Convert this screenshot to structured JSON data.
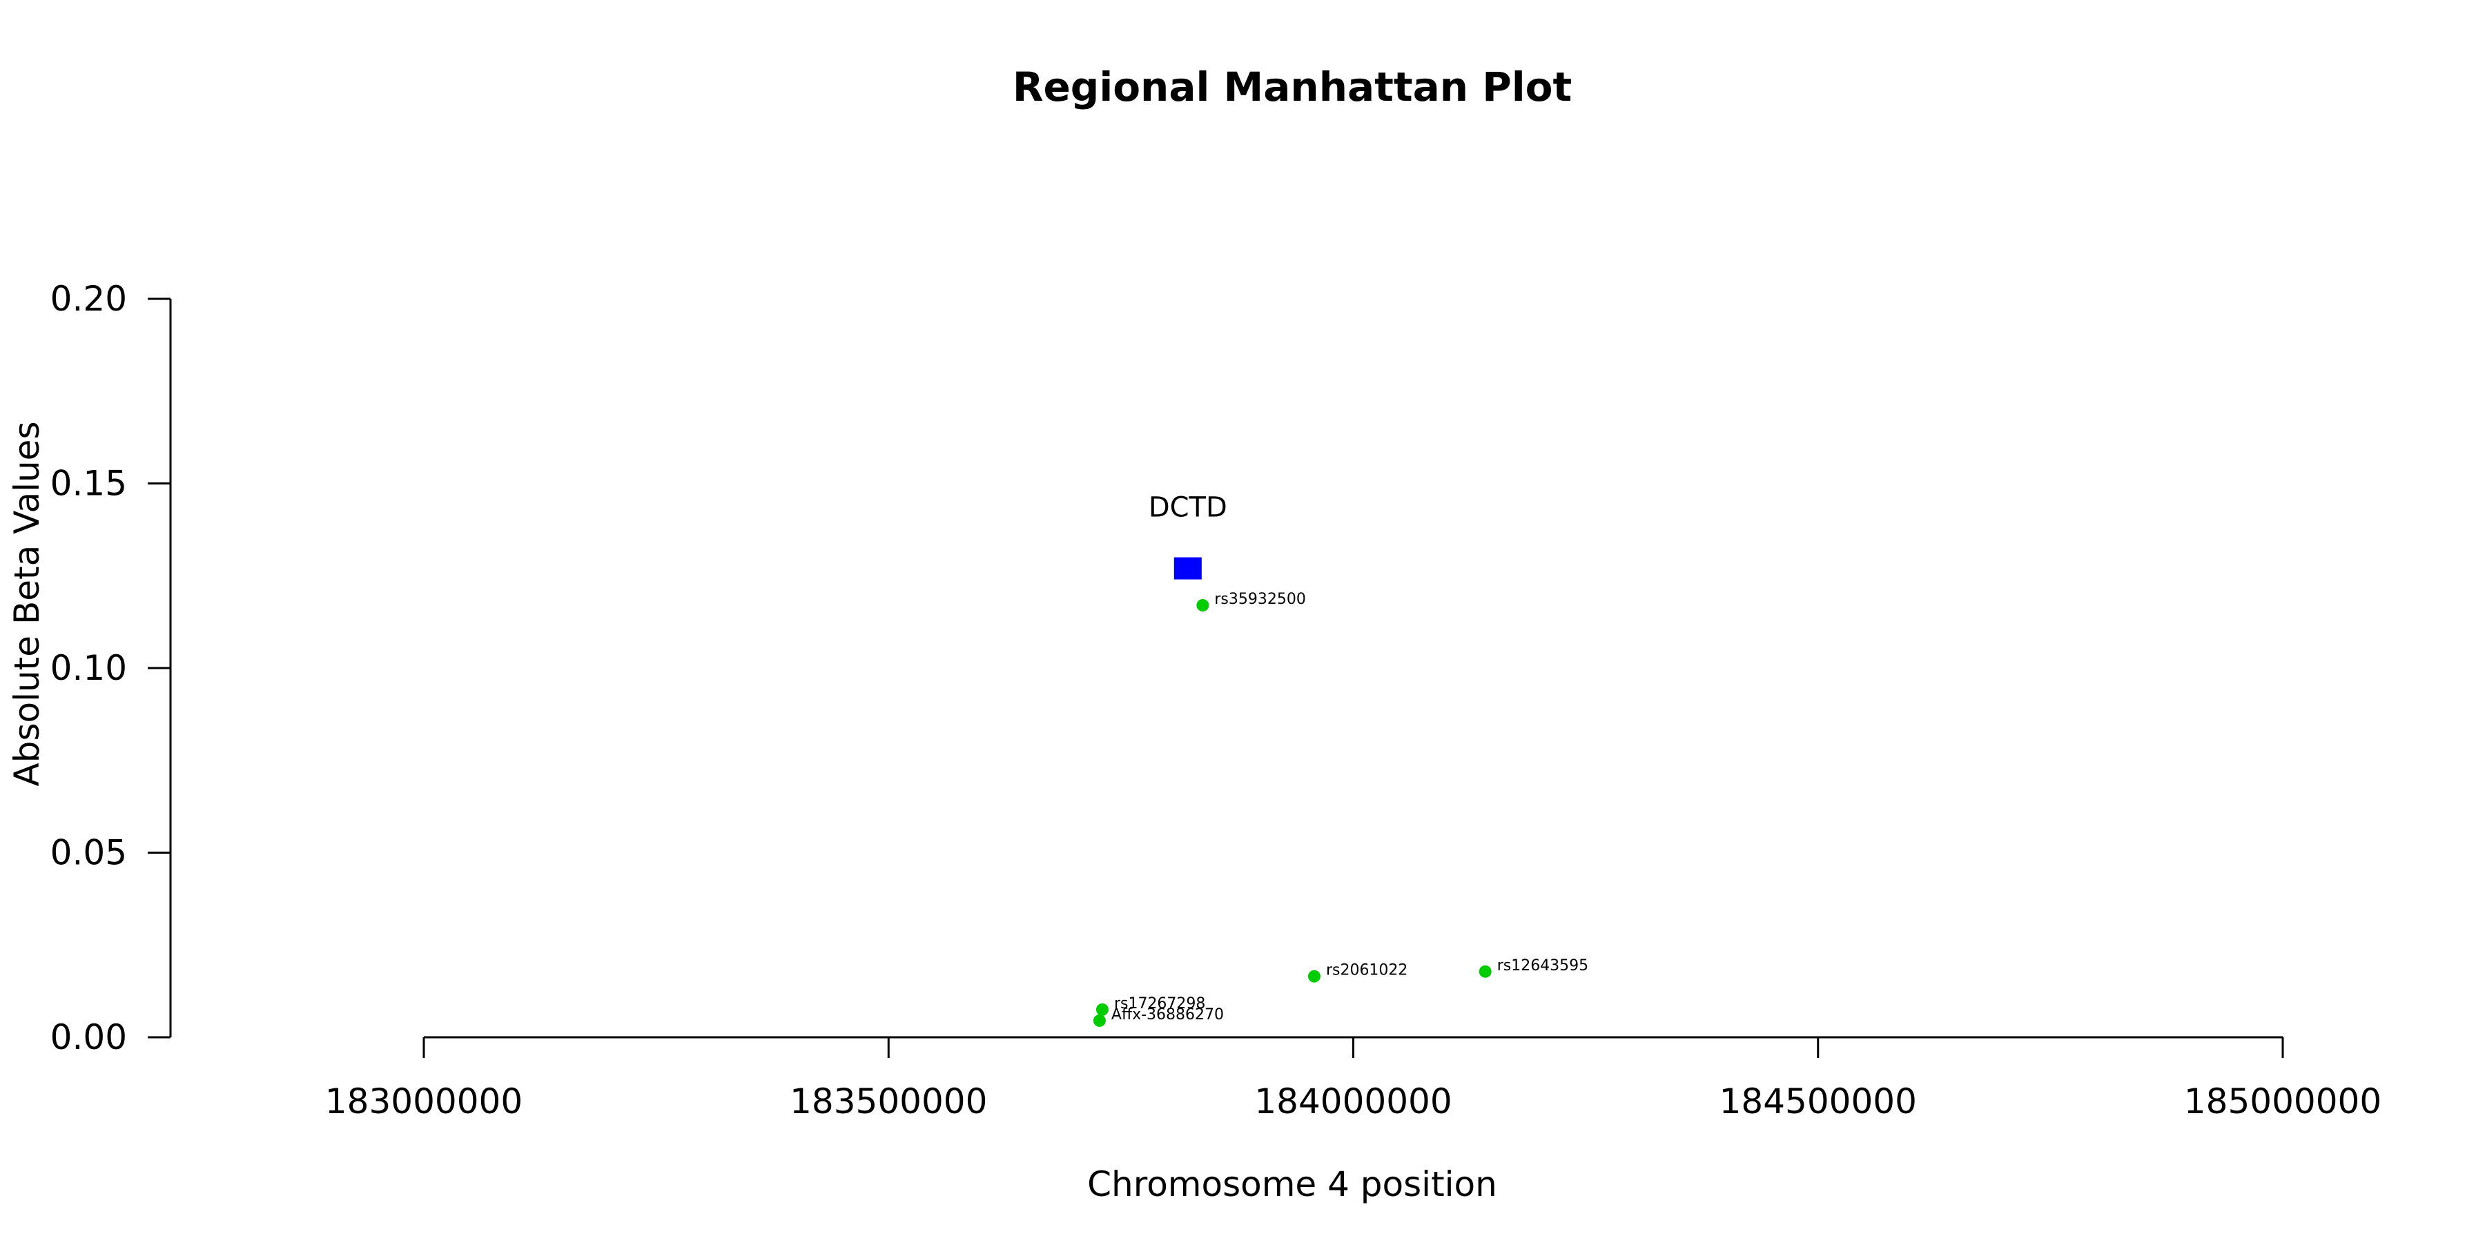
{
  "chart_data": {
    "type": "scatter",
    "title": "Regional Manhattan Plot",
    "xlabel": "Chromosome 4 position",
    "ylabel": "Absolute Beta Values",
    "xlim": [
      183000000,
      185000000
    ],
    "ylim": [
      0,
      0.2
    ],
    "x_ticks": [
      "183000000",
      "183500000",
      "184000000",
      "184500000",
      "185000000"
    ],
    "y_ticks": [
      "0.00",
      "0.05",
      "0.10",
      "0.15",
      "0.20"
    ],
    "grid": false,
    "gene": {
      "name": "DCTD",
      "x": 183822000,
      "y": 0.127,
      "color": "#0000ff",
      "marker": "square"
    },
    "snp_color": "#00cc00",
    "snps": [
      {
        "label": "rs35932500",
        "x": 183838000,
        "y": 0.117
      },
      {
        "label": "rs17267298",
        "x": 183730000,
        "y": 0.0075
      },
      {
        "label": "Affx-36886270",
        "x": 183727000,
        "y": 0.0045
      },
      {
        "label": "rs2061022",
        "x": 183958000,
        "y": 0.0165
      },
      {
        "label": "rs12643595",
        "x": 184142000,
        "y": 0.0178
      }
    ]
  }
}
